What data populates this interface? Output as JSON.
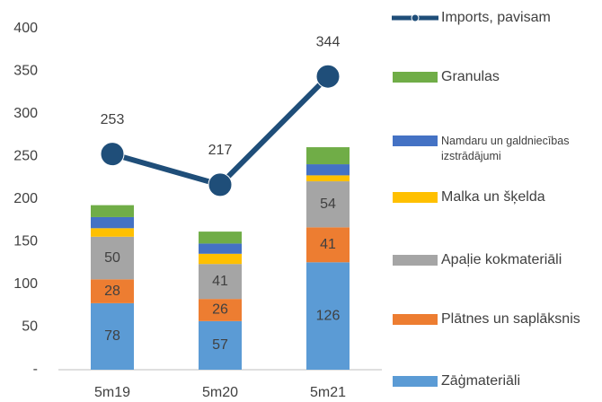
{
  "chart_data": {
    "type": "bar",
    "categories": [
      "5m19",
      "5m20",
      "5m21"
    ],
    "ylim": [
      0,
      400
    ],
    "yticks": [
      {
        "value": 0,
        "label": "-"
      },
      50,
      100,
      150,
      200,
      250,
      300,
      350,
      400
    ],
    "series": [
      {
        "name": "Zāģmateriāli",
        "type": "bar",
        "color": "#5b9bd5",
        "labels": true,
        "values": [
          78,
          57,
          126
        ]
      },
      {
        "name": "Plātnes un saplāksnis",
        "type": "bar",
        "color": "#ed7d31",
        "labels": true,
        "values": [
          28,
          26,
          41
        ]
      },
      {
        "name": "Apaļie kokmateriāli",
        "type": "bar",
        "color": "#a5a5a5",
        "labels": true,
        "values": [
          50,
          41,
          54
        ]
      },
      {
        "name": "Malka un šķelda",
        "type": "bar",
        "color": "#ffc000",
        "labels": false,
        "values": [
          10,
          12,
          7
        ]
      },
      {
        "name": "Namdaru un galdniecības izstrādājumi",
        "type": "bar",
        "color": "#4472c4",
        "labels": false,
        "values": [
          13,
          12,
          13
        ]
      },
      {
        "name": "Granulas",
        "type": "bar",
        "color": "#70ad47",
        "labels": false,
        "values": [
          14,
          14,
          20
        ]
      },
      {
        "name": "Imports, pavisam",
        "type": "line",
        "color": "#1f4e79",
        "labels": true,
        "values": [
          253,
          217,
          344
        ]
      }
    ]
  }
}
